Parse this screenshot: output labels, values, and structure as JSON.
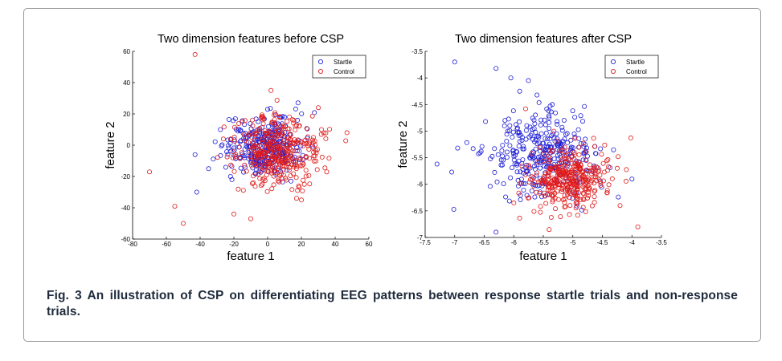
{
  "caption": "Fig. 3 An illustration of CSP on differentiating EEG patterns between response startle trials and non-response trials.",
  "colors": {
    "startle": "#1f1fd6",
    "control": "#e01b1b"
  },
  "chart_data": [
    {
      "type": "scatter",
      "title": "Two dimension features before CSP",
      "xlabel": "feature 1",
      "ylabel": "feature 2",
      "xlim": [
        -80,
        60
      ],
      "ylim": [
        -60,
        60
      ],
      "xticks": [
        -80,
        -60,
        -40,
        -20,
        0,
        20,
        40,
        60
      ],
      "yticks": [
        -60,
        -40,
        -20,
        0,
        20,
        40,
        60
      ],
      "legend_position": "top-right",
      "series": [
        {
          "name": "Startle",
          "center": [
            -2,
            -1
          ],
          "spread": [
            11,
            9
          ],
          "count": 320,
          "outliers": [
            [
              -43,
              -6
            ],
            [
              -28,
              10
            ],
            [
              -35,
              -15
            ],
            [
              -42,
              -30
            ],
            [
              -22,
              -20
            ],
            [
              0,
              23
            ],
            [
              18,
              27
            ],
            [
              10,
              18
            ]
          ]
        },
        {
          "name": "Control",
          "center": [
            6,
            -4
          ],
          "spread": [
            13,
            11
          ],
          "count": 360,
          "outliers": [
            [
              -43,
              58
            ],
            [
              -70,
              -17
            ],
            [
              -55,
              -39
            ],
            [
              -50,
              -50
            ],
            [
              -20,
              -44
            ],
            [
              -10,
              -47
            ],
            [
              35,
              -17
            ],
            [
              47,
              8
            ],
            [
              30,
              24
            ],
            [
              2,
              35
            ],
            [
              20,
              -35
            ]
          ]
        }
      ]
    },
    {
      "type": "scatter",
      "title": "Two dimension features after CSP",
      "xlabel": "feature 1",
      "ylabel": "feature 2",
      "xlim": [
        -7.5,
        -3.5
      ],
      "ylim": [
        -7,
        -3.5
      ],
      "xticks": [
        -7.5,
        -7,
        -6.5,
        -6,
        -5.5,
        -5,
        -4.5,
        -4,
        -3.5
      ],
      "yticks": [
        -7,
        -6.5,
        -6,
        -5.5,
        -5,
        -4.5,
        -4,
        -3.5
      ],
      "legend_position": "top-right",
      "series": [
        {
          "name": "Startle",
          "center": [
            -5.55,
            -5.45
          ],
          "spread": [
            0.45,
            0.38
          ],
          "count": 330,
          "outliers": [
            [
              -7,
              -3.7
            ],
            [
              -6.3,
              -3.82
            ],
            [
              -6.05,
              -4.0
            ],
            [
              -5.9,
              -4.25
            ],
            [
              -7.3,
              -5.62
            ],
            [
              -7.05,
              -5.77
            ],
            [
              -6.95,
              -5.32
            ],
            [
              -6.3,
              -6.9
            ],
            [
              -4.0,
              -5.9
            ]
          ]
        },
        {
          "name": "Control",
          "center": [
            -5.1,
            -5.88
          ],
          "spread": [
            0.33,
            0.27
          ],
          "count": 360,
          "outliers": [
            [
              -3.9,
              -6.8
            ],
            [
              -4.2,
              -6.4
            ],
            [
              -5.4,
              -6.85
            ],
            [
              -6.0,
              -6.35
            ],
            [
              -5.8,
              -4.58
            ],
            [
              -4.25,
              -5.7
            ]
          ]
        }
      ]
    }
  ]
}
